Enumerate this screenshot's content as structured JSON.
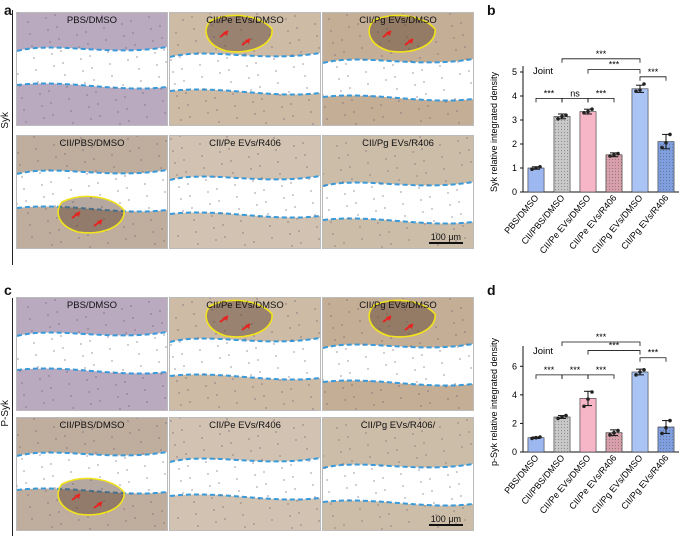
{
  "panels": {
    "a": {
      "label": "a",
      "row_label": "Syk",
      "titles_top": [
        "PBS/DMSO",
        "CII/Pe EVs/DMSO",
        "CII/Pg EVs/DMSO"
      ],
      "titles_bottom": [
        "CII/PBS/DMSO",
        "CII/Pe EVs/R406",
        "CII/Pg EVs/R406"
      ],
      "scale_bar": "100 μm"
    },
    "c": {
      "label": "c",
      "row_label": "P-Syk",
      "titles_top": [
        "PBS/DMSO",
        "CII/Pe EVs/DMSO",
        "CII/Pg EVs/DMSO"
      ],
      "titles_bottom": [
        "CII/PBS/DMSO",
        "CII/Pe EVs/R406",
        "CII/Pg EVs/R406/"
      ],
      "scale_bar": "100 μm"
    },
    "b": {
      "label": "b"
    },
    "d": {
      "label": "d"
    }
  },
  "colors": {
    "dashed_boundary": "#3a9ad9",
    "yellow_outline": "#f2e41a",
    "arrow": "#e8231f",
    "bars": [
      "#9db7f0",
      "#c9c9c9",
      "#f7b6c8",
      "#d9a0ab",
      "#a9c4f5",
      "#7f9fe0"
    ]
  },
  "chart_data": [
    {
      "type": "bar",
      "annotation": "Joint",
      "ylabel": "Syk relative integrated density",
      "categories": [
        "PBS/DMSO",
        "CII/PBS/DMSO",
        "CII/Pe EVs/DMSO",
        "CII/Pe EVs/R406",
        "CII/Pg EVs/DMSO",
        "CII/Pg EVs/R406"
      ],
      "values": [
        1.0,
        3.15,
        3.35,
        1.55,
        4.3,
        2.1
      ],
      "errors": [
        0.05,
        0.1,
        0.1,
        0.08,
        0.15,
        0.3
      ],
      "points": [
        [
          0.95,
          1.0,
          1.05
        ],
        [
          3.05,
          3.15,
          3.2
        ],
        [
          3.3,
          3.35,
          3.45
        ],
        [
          1.5,
          1.55,
          1.6
        ],
        [
          4.2,
          4.25,
          4.5
        ],
        [
          1.85,
          2.05,
          2.4
        ]
      ],
      "ylim": [
        0,
        5
      ],
      "yticks": [
        "0",
        "1",
        "2",
        "3",
        "4",
        "5"
      ],
      "significance": [
        {
          "from": 0,
          "to": 1,
          "label": "***",
          "y": 3.9
        },
        {
          "from": 1,
          "to": 2,
          "label": "ns",
          "y": 3.9
        },
        {
          "from": 2,
          "to": 3,
          "label": "***",
          "y": 3.9
        },
        {
          "from": 4,
          "to": 5,
          "label": "***",
          "y": 4.8
        },
        {
          "from": 2,
          "to": 4,
          "label": "***",
          "y": 5.1
        },
        {
          "from": 1,
          "to": 4,
          "label": "***",
          "y": 5.55
        }
      ]
    },
    {
      "type": "bar",
      "annotation": "Joint",
      "ylabel": "p-Syk relative integrated density",
      "categories": [
        "PBS/DMSO",
        "CII/PBS/DMSO",
        "CII/Pe EVs/DMSO",
        "CII/Pe EVs/R406",
        "CII/Pg EVs/DMSO",
        "CII/Pg EVs/R406"
      ],
      "values": [
        1.0,
        2.45,
        3.75,
        1.35,
        5.6,
        1.75
      ],
      "errors": [
        0.05,
        0.1,
        0.5,
        0.2,
        0.2,
        0.45
      ],
      "points": [
        [
          0.95,
          1.0,
          1.05
        ],
        [
          2.35,
          2.45,
          2.55
        ],
        [
          3.2,
          3.7,
          4.2
        ],
        [
          1.2,
          1.35,
          1.5
        ],
        [
          5.4,
          5.6,
          5.75
        ],
        [
          1.3,
          1.7,
          2.2
        ]
      ],
      "ylim": [
        0,
        7
      ],
      "yticks": [
        "0",
        "2",
        "4",
        "6"
      ],
      "significance": [
        {
          "from": 0,
          "to": 1,
          "label": "***",
          "y": 5.4
        },
        {
          "from": 1,
          "to": 2,
          "label": "***",
          "y": 5.4
        },
        {
          "from": 2,
          "to": 3,
          "label": "***",
          "y": 5.4
        },
        {
          "from": 4,
          "to": 5,
          "label": "***",
          "y": 6.6
        },
        {
          "from": 2,
          "to": 4,
          "label": "***",
          "y": 7.1
        },
        {
          "from": 1,
          "to": 4,
          "label": "***",
          "y": 7.7
        }
      ]
    }
  ]
}
